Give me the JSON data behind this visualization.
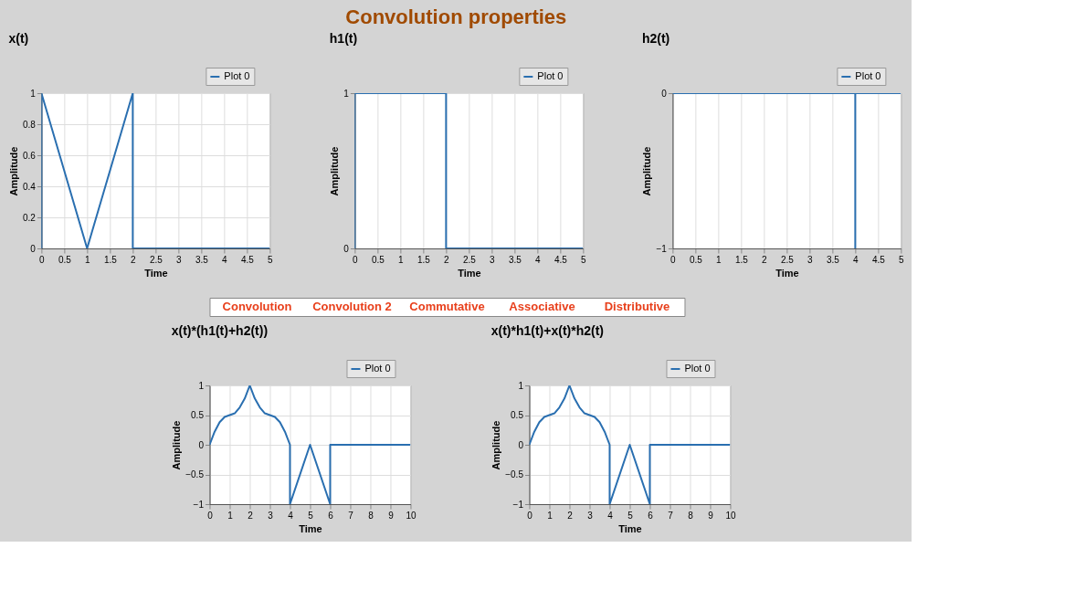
{
  "chart_data": [
    {
      "type": "line",
      "title": "x(t)",
      "xlabel": "Time",
      "ylabel": "Amplitude",
      "annotations": [
        "Convolution properties"
      ],
      "series": [
        {
          "name": "Plot 0",
          "color": "#2a6fb0",
          "x": [
            0,
            0,
            1,
            2,
            2,
            5
          ],
          "values": [
            0,
            1,
            0,
            1,
            0,
            0
          ]
        }
      ],
      "xlim": [
        0,
        5
      ],
      "xticks": [
        0,
        0.5,
        1,
        1.5,
        2,
        2.5,
        3,
        3.5,
        4,
        4.5,
        5
      ],
      "ylim": [
        0,
        1
      ],
      "yticks": [
        0,
        0.2,
        0.4,
        0.6,
        0.8,
        1
      ],
      "grid": true,
      "legend": "top right"
    },
    {
      "type": "line",
      "title": "h1(t)",
      "xlabel": "Time",
      "ylabel": "Amplitude",
      "series": [
        {
          "name": "Plot 0",
          "color": "#2a6fb0",
          "x": [
            0,
            0,
            2,
            2,
            5
          ],
          "values": [
            0,
            1,
            1,
            0,
            0
          ]
        }
      ],
      "xlim": [
        0,
        5
      ],
      "xticks": [
        0,
        0.5,
        1,
        1.5,
        2,
        2.5,
        3,
        3.5,
        4,
        4.5,
        5
      ],
      "ylim": [
        0,
        1
      ],
      "yticks": [
        0,
        1
      ],
      "grid": true,
      "legend": "top right"
    },
    {
      "type": "line",
      "title": "h2(t)",
      "xlabel": "Time",
      "ylabel": "Amplitude",
      "series": [
        {
          "name": "Plot 0",
          "color": "#2a6fb0",
          "x": [
            0,
            4,
            4,
            4,
            5
          ],
          "values": [
            0,
            0,
            -1,
            0,
            0
          ]
        }
      ],
      "xlim": [
        0,
        5
      ],
      "xticks": [
        0,
        0.5,
        1,
        1.5,
        2,
        2.5,
        3,
        3.5,
        4,
        4.5,
        5
      ],
      "ylim": [
        -1,
        0
      ],
      "yticks": [
        -1,
        0
      ],
      "grid": true,
      "legend": "top right"
    },
    {
      "type": "line",
      "title": "x(t)*(h1(t)+h2(t))",
      "xlabel": "Time",
      "ylabel": "Amplitude",
      "annotations": [
        "Convolution",
        "Convolution 2",
        "Commutative",
        "Associative",
        "Distributive"
      ],
      "series": [
        {
          "name": "Plot 0",
          "color": "#2a6fb0",
          "x": [
            0,
            0.25,
            0.5,
            0.75,
            1,
            1.25,
            1.5,
            1.75,
            2,
            2.25,
            2.5,
            2.75,
            3,
            3.25,
            3.5,
            3.75,
            4,
            4,
            5,
            6,
            6,
            10
          ],
          "values": [
            0,
            0.22,
            0.38,
            0.47,
            0.5,
            0.53,
            0.63,
            0.78,
            1,
            0.78,
            0.63,
            0.53,
            0.5,
            0.47,
            0.38,
            0.22,
            0,
            -1,
            0,
            -1,
            0,
            0
          ]
        }
      ],
      "xlim": [
        0,
        10
      ],
      "xticks": [
        0,
        1,
        2,
        3,
        4,
        5,
        6,
        7,
        8,
        9,
        10
      ],
      "ylim": [
        -1,
        1
      ],
      "yticks": [
        -1,
        -0.5,
        0,
        0.5,
        1
      ],
      "grid": true,
      "legend": "top right"
    },
    {
      "type": "line",
      "title": "x(t)*h1(t)+x(t)*h2(t)",
      "xlabel": "Time",
      "ylabel": "Amplitude",
      "series": [
        {
          "name": "Plot 0",
          "color": "#2a6fb0",
          "x": [
            0,
            0.25,
            0.5,
            0.75,
            1,
            1.25,
            1.5,
            1.75,
            2,
            2.25,
            2.5,
            2.75,
            3,
            3.25,
            3.5,
            3.75,
            4,
            4,
            5,
            6,
            6,
            10
          ],
          "values": [
            0,
            0.22,
            0.38,
            0.47,
            0.5,
            0.53,
            0.63,
            0.78,
            1,
            0.78,
            0.63,
            0.53,
            0.5,
            0.47,
            0.38,
            0.22,
            0,
            -1,
            0,
            -1,
            0,
            0
          ]
        }
      ],
      "xlim": [
        0,
        10
      ],
      "xticks": [
        0,
        1,
        2,
        3,
        4,
        5,
        6,
        7,
        8,
        9,
        10
      ],
      "ylim": [
        -1,
        1
      ],
      "yticks": [
        -1,
        -0.5,
        0,
        0.5,
        1
      ],
      "grid": true,
      "legend": "top right"
    }
  ]
}
